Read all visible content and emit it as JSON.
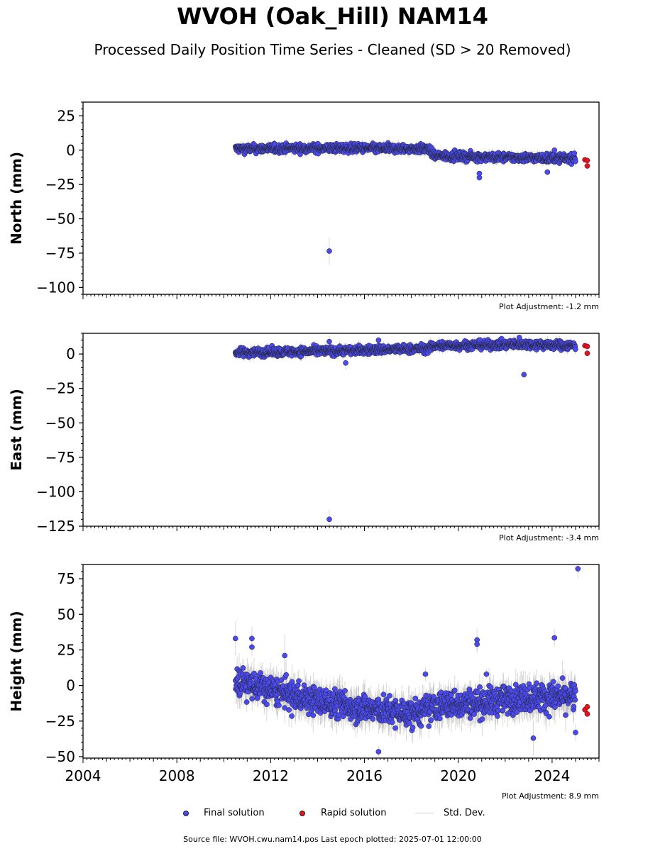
{
  "title": "WVOH (Oak_Hill) NAM14",
  "subtitle": "Processed Daily Position Time Series - Cleaned (SD > 20 Removed)",
  "source": "Source file: WVOH.cwu.nam14.pos  Last epoch plotted: 2025-07-01 12:00:00",
  "colors": {
    "final": "#4a4af0",
    "rapid": "#e8101a",
    "stddev": "#cccccc"
  },
  "legend": [
    {
      "label": "Final solution",
      "marker": "circle",
      "color": "#4a4af0"
    },
    {
      "label": "Rapid solution",
      "marker": "circle",
      "color": "#e8101a"
    },
    {
      "label": "Std. Dev.",
      "marker": "line",
      "color": "#cccccc"
    }
  ],
  "chart_data": [
    {
      "type": "scatter",
      "ylabel": "North (mm)",
      "adjustment_label": "Plot Adjustment: -1.2 mm",
      "xlim": [
        2004,
        2026
      ],
      "ylim": [
        -105,
        35
      ],
      "yticks": [
        25,
        0,
        -25,
        -50,
        -75,
        -100
      ],
      "ytick_labels": [
        "25",
        "0",
        "−25",
        "−50",
        "−75",
        "−100"
      ],
      "xtick_labels": [],
      "trend": [
        [
          2010.5,
          1
        ],
        [
          2014,
          1.5
        ],
        [
          2018.7,
          1
        ],
        [
          2019,
          -4
        ],
        [
          2021,
          -5
        ],
        [
          2025,
          -6
        ]
      ],
      "noise": 2.2,
      "outliers": [
        {
          "x": 2014.5,
          "y": -73.5,
          "err": 10
        },
        {
          "x": 2020.9,
          "y": -20,
          "err": 2
        },
        {
          "x": 2020.9,
          "y": -17,
          "err": 2
        },
        {
          "x": 2023.8,
          "y": -16,
          "err": 2
        },
        {
          "x": 2024.1,
          "y": 0,
          "err": 2
        }
      ],
      "rapid": [
        {
          "x": 2025.4,
          "y": -7
        },
        {
          "x": 2025.5,
          "y": -7.5
        },
        {
          "x": 2025.5,
          "y": -11.5
        }
      ]
    },
    {
      "type": "scatter",
      "ylabel": "East (mm)",
      "adjustment_label": "Plot Adjustment: -3.4 mm",
      "xlim": [
        2004,
        2026
      ],
      "ylim": [
        -125,
        15
      ],
      "yticks": [
        0,
        -25,
        -50,
        -75,
        -100,
        -125
      ],
      "ytick_labels": [
        "0",
        "−25",
        "−50",
        "−75",
        "−100",
        "−125"
      ],
      "xtick_labels": [],
      "trend": [
        [
          2010.5,
          1
        ],
        [
          2014,
          2
        ],
        [
          2018.7,
          4
        ],
        [
          2019,
          6
        ],
        [
          2023,
          7
        ],
        [
          2025,
          6
        ]
      ],
      "noise": 2.2,
      "outliers": [
        {
          "x": 2014.5,
          "y": -120,
          "err": 7
        },
        {
          "x": 2014.5,
          "y": 9,
          "err": 4
        },
        {
          "x": 2015.2,
          "y": -6.5,
          "err": 5
        },
        {
          "x": 2016.6,
          "y": 10,
          "err": 2
        },
        {
          "x": 2022.8,
          "y": -15,
          "err": 3
        },
        {
          "x": 2022.6,
          "y": 12,
          "err": 2
        }
      ],
      "rapid": [
        {
          "x": 2025.4,
          "y": 6
        },
        {
          "x": 2025.5,
          "y": 5.5
        },
        {
          "x": 2025.5,
          "y": 0.5
        }
      ]
    },
    {
      "type": "scatter",
      "ylabel": "Height (mm)",
      "adjustment_label": "Plot Adjustment: 8.9 mm",
      "xlim": [
        2004,
        2026
      ],
      "ylim": [
        -51,
        85
      ],
      "yticks": [
        75,
        50,
        25,
        0,
        -25,
        -50
      ],
      "ytick_labels": [
        "75",
        "50",
        "25",
        "0",
        "−25",
        "−50"
      ],
      "xticks": [
        2004,
        2008,
        2012,
        2016,
        2020,
        2024
      ],
      "xtick_labels": [
        "2004",
        "2008",
        "2012",
        "2016",
        "2020",
        "2024"
      ],
      "trend": [
        [
          2010.5,
          3
        ],
        [
          2012,
          -3
        ],
        [
          2014,
          -11
        ],
        [
          2016,
          -16
        ],
        [
          2018,
          -20
        ],
        [
          2019.5,
          -13
        ],
        [
          2021,
          -12
        ],
        [
          2023,
          -8
        ],
        [
          2025,
          -8
        ]
      ],
      "noise": 7,
      "outliers": [
        {
          "x": 2010.5,
          "y": 33,
          "err": 12
        },
        {
          "x": 2011.2,
          "y": 33,
          "err": 8
        },
        {
          "x": 2011.2,
          "y": 27,
          "err": 6
        },
        {
          "x": 2012.6,
          "y": 21,
          "err": 15
        },
        {
          "x": 2012.9,
          "y": -21.5,
          "err": 8
        },
        {
          "x": 2016.6,
          "y": -46.5,
          "err": 4
        },
        {
          "x": 2018.6,
          "y": 8,
          "err": 5
        },
        {
          "x": 2020.8,
          "y": 32,
          "err": 8
        },
        {
          "x": 2020.8,
          "y": 29,
          "err": 6
        },
        {
          "x": 2021.2,
          "y": 8,
          "err": 4
        },
        {
          "x": 2023.2,
          "y": -37,
          "err": 12
        },
        {
          "x": 2024.1,
          "y": 33.5,
          "err": 6
        },
        {
          "x": 2025.1,
          "y": 82,
          "err": 7
        },
        {
          "x": 2025.0,
          "y": -33,
          "err": 6
        }
      ],
      "rapid": [
        {
          "x": 2025.4,
          "y": -17
        },
        {
          "x": 2025.5,
          "y": -15
        },
        {
          "x": 2025.5,
          "y": -20
        }
      ]
    }
  ]
}
